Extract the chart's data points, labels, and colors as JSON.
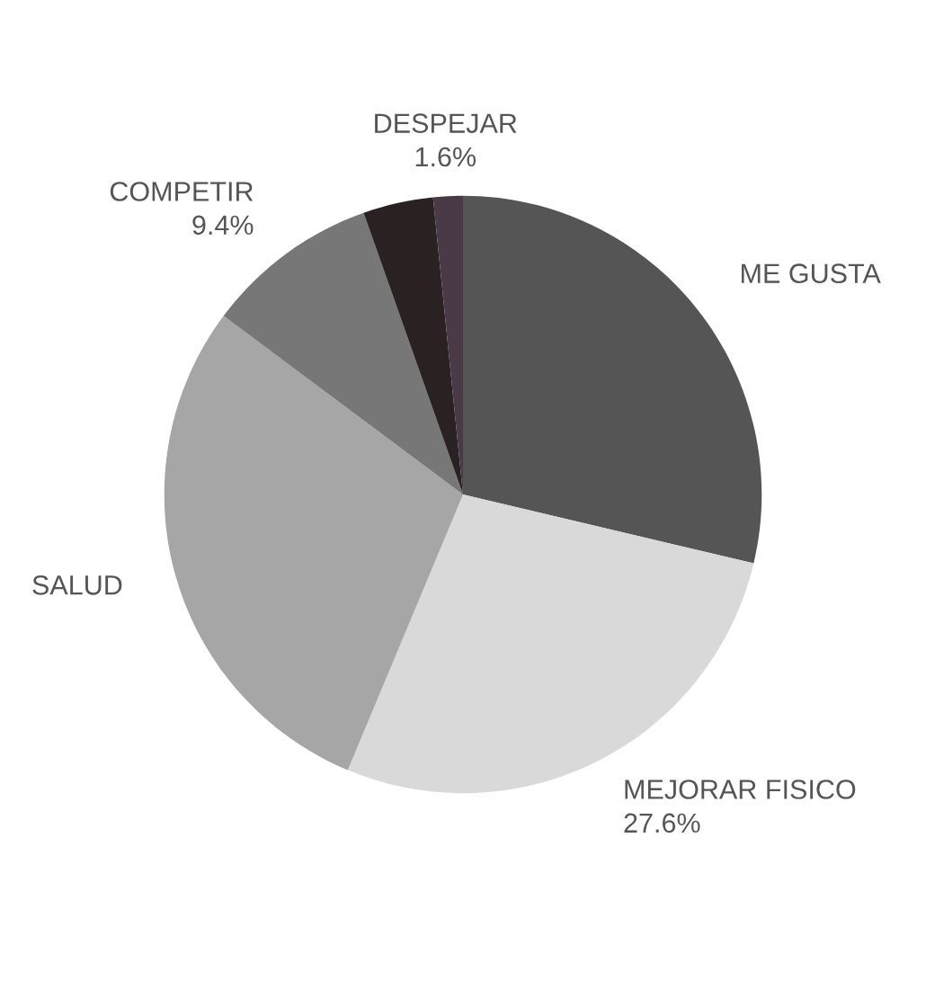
{
  "chart_data": {
    "type": "pie",
    "categories": [
      "ME GUSTA",
      "MEJORAR FISICO",
      "SALUD",
      "COMPETIR",
      null,
      "DESPEJAR"
    ],
    "values": [
      28.7,
      27.6,
      28.9,
      9.4,
      3.8,
      1.6
    ],
    "colors": [
      "#555555",
      "#d9d9d9",
      "#a6a6a6",
      "#777777",
      "#2a2122",
      "#4a3a48"
    ],
    "value_labels": [
      null,
      "27.6%",
      null,
      "9.4%",
      null,
      "1.6%"
    ]
  }
}
